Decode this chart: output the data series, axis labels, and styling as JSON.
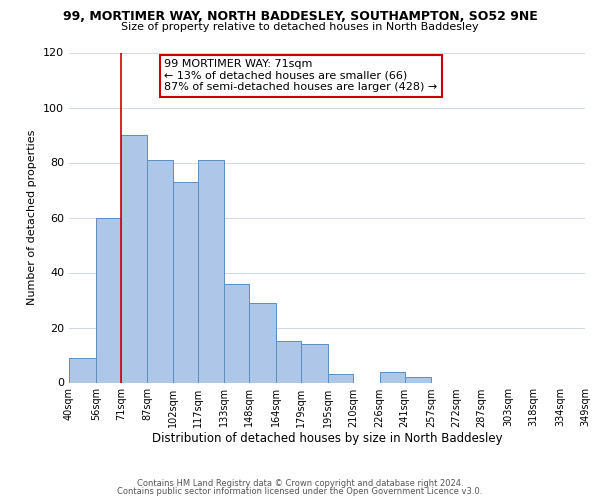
{
  "title": "99, MORTIMER WAY, NORTH BADDESLEY, SOUTHAMPTON, SO52 9NE",
  "subtitle": "Size of property relative to detached houses in North Baddesley",
  "xlabel": "Distribution of detached houses by size in North Baddesley",
  "ylabel": "Number of detached properties",
  "footer_line1": "Contains HM Land Registry data © Crown copyright and database right 2024.",
  "footer_line2": "Contains public sector information licensed under the Open Government Licence v3.0.",
  "bin_edges": [
    40,
    56,
    71,
    87,
    102,
    117,
    133,
    148,
    164,
    179,
    195,
    210,
    226,
    241,
    257,
    272,
    287,
    303,
    318,
    334,
    349
  ],
  "bar_heights": [
    9,
    60,
    90,
    81,
    73,
    81,
    36,
    29,
    15,
    14,
    3,
    0,
    4,
    2,
    0,
    0,
    0,
    0,
    0,
    0
  ],
  "bar_color": "#aec6e8",
  "bar_edge_color": "#5a8fc2",
  "vline_x": 71,
  "vline_color": "#cc0000",
  "ylim": [
    0,
    120
  ],
  "yticks": [
    0,
    20,
    40,
    60,
    80,
    100,
    120
  ],
  "annotation_line1": "99 MORTIMER WAY: 71sqm",
  "annotation_line2": "← 13% of detached houses are smaller (66)",
  "annotation_line3": "87% of semi-detached houses are larger (428) →",
  "annotation_box_color": "#ffffff",
  "annotation_border_color": "#cc0000",
  "background_color": "#ffffff",
  "grid_color": "#d0d8e8",
  "title_fontsize": 9,
  "subtitle_fontsize": 8,
  "ylabel_fontsize": 8,
  "xlabel_fontsize": 8.5,
  "ytick_fontsize": 8,
  "xtick_fontsize": 7,
  "annotation_fontsize": 8,
  "footer_fontsize": 6
}
